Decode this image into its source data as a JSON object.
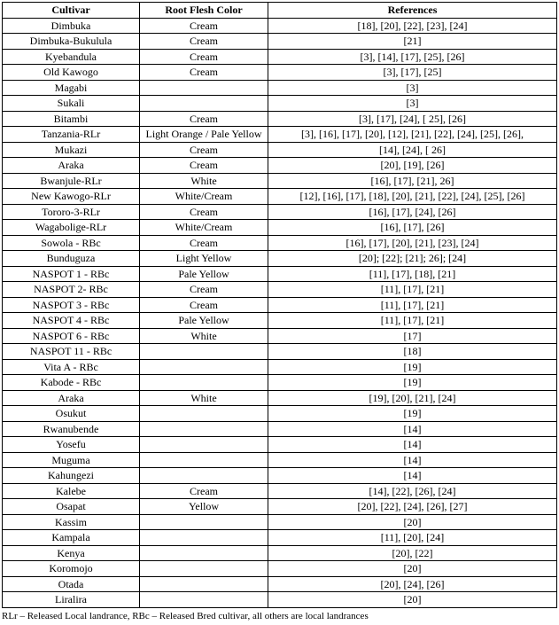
{
  "table": {
    "headers": [
      "Cultivar",
      "Root Flesh Color",
      "References"
    ],
    "rows": [
      [
        "Dimbuka",
        "Cream",
        "[18], [20], [22], [23], [24]"
      ],
      [
        "Dimbuka-Bukulula",
        "Cream",
        "[21]"
      ],
      [
        "Kyebandula",
        "Cream",
        "[3], [14], [17], [25], [26]"
      ],
      [
        "Old Kawogo",
        "Cream",
        "[3], [17], [25]"
      ],
      [
        "Magabi",
        "",
        "[3]"
      ],
      [
        "Sukali",
        "",
        "[3]"
      ],
      [
        "Bitambi",
        "Cream",
        "[3], [17], [24], [ 25], [26]"
      ],
      [
        "Tanzania-RLr",
        "Light Orange / Pale Yellow",
        "[3], [16], [17], [20], [12], [21], [22], [24], [25], [26],"
      ],
      [
        "Mukazi",
        "Cream",
        "[14], [24], [ 26]"
      ],
      [
        "Araka",
        "Cream",
        "[20], [19], [26]"
      ],
      [
        "Bwanjule-RLr",
        "White",
        "[16], [17], [21], 26]"
      ],
      [
        "New Kawogo-RLr",
        "White/Cream",
        "[12], [16], [17], [18], [20], [21], [22], [24], [25], [26]"
      ],
      [
        "Tororo-3-RLr",
        "Cream",
        "[16], [17], [24], [26]"
      ],
      [
        "Wagabolige-RLr",
        "White/Cream",
        "[16], [17], [26]"
      ],
      [
        "Sowola - RBc",
        "Cream",
        "[16], [17], [20], [21], [23], [24]"
      ],
      [
        "Bunduguza",
        "Light Yellow",
        "[20]; [22]; [21]; 26]; [24]"
      ],
      [
        "NASPOT 1 - RBc",
        "Pale Yellow",
        "[11], [17], [18], [21]"
      ],
      [
        "NASPOT 2- RBc",
        "Cream",
        "[11], [17], [21]"
      ],
      [
        "NASPOT 3 - RBc",
        "Cream",
        "[11], [17], [21]"
      ],
      [
        "NASPOT 4 - RBc",
        "Pale Yellow",
        "[11], [17], [21]"
      ],
      [
        "NASPOT 6 - RBc",
        "White",
        "[17]"
      ],
      [
        "NASPOT 11 - RBc",
        "",
        "[18]"
      ],
      [
        "Vita A - RBc",
        "",
        "[19]"
      ],
      [
        "Kabode - RBc",
        "",
        "[19]"
      ],
      [
        "Araka",
        "White",
        "[19], [20], [21], [24]"
      ],
      [
        "Osukut",
        "",
        "[19]"
      ],
      [
        "Rwanubende",
        "",
        "[14]"
      ],
      [
        "Yosefu",
        "",
        "[14]"
      ],
      [
        "Muguma",
        "",
        "[14]"
      ],
      [
        "Kahungezi",
        "",
        "[14]"
      ],
      [
        "Kalebe",
        "Cream",
        "[14], [22], [26], [24]"
      ],
      [
        "Osapat",
        "Yellow",
        "[20], [22], [24], [26], [27]"
      ],
      [
        "Kassim",
        "",
        "[20]"
      ],
      [
        "Kampala",
        "",
        "[11], [20], [24]"
      ],
      [
        "Kenya",
        "",
        "[20], [22]"
      ],
      [
        "Koromojo",
        "",
        "[20]"
      ],
      [
        "Otada",
        "",
        "[20], [24], [26]"
      ],
      [
        "Liralira",
        "",
        "[20]"
      ]
    ]
  },
  "footnote": "RLr – Released Local landrance, RBc – Released Bred cultivar, all others are local landrances"
}
